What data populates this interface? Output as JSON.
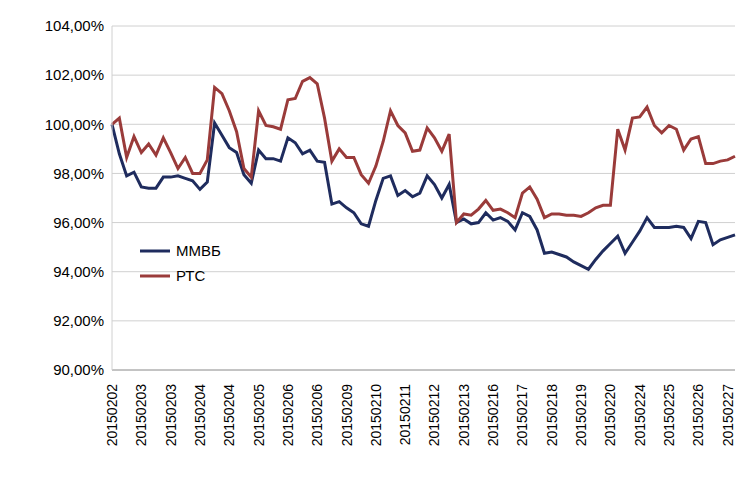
{
  "chart_data": {
    "type": "line",
    "categories": [
      "20150202",
      null,
      null,
      null,
      "20150203",
      null,
      null,
      null,
      "20150203",
      null,
      null,
      null,
      "20150204",
      null,
      null,
      null,
      "20150204",
      null,
      null,
      null,
      "20150205",
      null,
      null,
      null,
      "20150206",
      null,
      null,
      null,
      "20150206",
      null,
      null,
      null,
      "20150209",
      null,
      null,
      null,
      "20150210",
      null,
      null,
      null,
      "20150211",
      null,
      null,
      null,
      "20150212",
      null,
      null,
      null,
      "20150213",
      null,
      null,
      null,
      "20150216",
      null,
      null,
      null,
      "20150217",
      null,
      null,
      null,
      "20150218",
      null,
      null,
      null,
      "20150219",
      null,
      null,
      null,
      "20150220",
      null,
      null,
      null,
      "20150224",
      null,
      null,
      null,
      "20150225",
      null,
      null,
      null,
      "20150226",
      null,
      null,
      null,
      "20150227",
      null
    ],
    "series": [
      {
        "name": "ММВБ",
        "color": "#1f2c5e",
        "values": [
          100.0,
          98.8,
          97.9,
          98.05,
          97.45,
          97.4,
          97.4,
          97.85,
          97.85,
          97.9,
          97.8,
          97.7,
          97.35,
          97.65,
          100.05,
          99.55,
          99.05,
          98.85,
          97.95,
          97.6,
          98.95,
          98.6,
          98.6,
          98.5,
          99.45,
          99.25,
          98.8,
          98.95,
          98.5,
          98.45,
          96.75,
          96.85,
          96.6,
          96.4,
          95.95,
          95.85,
          96.9,
          97.8,
          97.9,
          97.1,
          97.3,
          97.05,
          97.2,
          97.9,
          97.55,
          97.0,
          97.55,
          96.0,
          96.15,
          95.95,
          96.0,
          96.4,
          96.1,
          96.2,
          96.05,
          95.7,
          96.4,
          96.25,
          95.7,
          94.75,
          94.8,
          94.7,
          94.6,
          94.4,
          94.25,
          94.1,
          94.5,
          94.85,
          95.15,
          95.45,
          94.75,
          95.2,
          95.65,
          96.2,
          95.8,
          95.8,
          95.8,
          95.85,
          95.8,
          95.35,
          96.05,
          96.0,
          95.1,
          95.3,
          95.4,
          95.5
        ]
      },
      {
        "name": "РТС",
        "color": "#9a3b3a",
        "values": [
          100.0,
          100.25,
          98.65,
          99.5,
          98.85,
          99.2,
          98.75,
          99.45,
          98.85,
          98.2,
          98.65,
          98.0,
          98.0,
          98.55,
          101.5,
          101.25,
          100.55,
          99.7,
          98.2,
          97.85,
          100.55,
          99.95,
          99.9,
          99.8,
          101.0,
          101.05,
          101.75,
          101.9,
          101.65,
          100.25,
          98.5,
          99.0,
          98.65,
          98.65,
          97.95,
          97.6,
          98.3,
          99.3,
          100.55,
          99.95,
          99.65,
          98.9,
          98.95,
          99.85,
          99.45,
          98.9,
          99.6,
          96.0,
          96.35,
          96.3,
          96.55,
          96.9,
          96.5,
          96.55,
          96.4,
          96.2,
          97.2,
          97.45,
          96.95,
          96.2,
          96.35,
          96.35,
          96.3,
          96.3,
          96.25,
          96.4,
          96.6,
          96.7,
          96.7,
          99.8,
          98.95,
          100.25,
          100.3,
          100.7,
          99.95,
          99.65,
          99.95,
          99.8,
          98.95,
          99.4,
          99.5,
          98.4,
          98.4,
          98.5,
          98.55,
          98.7
        ]
      }
    ],
    "ylim": [
      90,
      104
    ],
    "yticks": [
      {
        "value": 90,
        "label": "90,00%"
      },
      {
        "value": 92,
        "label": "92,00%"
      },
      {
        "value": 94,
        "label": "94,00%"
      },
      {
        "value": 96,
        "label": "96,00%"
      },
      {
        "value": 98,
        "label": "98,00%"
      },
      {
        "value": 100,
        "label": "100,00%"
      },
      {
        "value": 102,
        "label": "102,00%"
      },
      {
        "value": 104,
        "label": "104,00%"
      }
    ],
    "grid": true,
    "legend": "left",
    "marker": "none"
  }
}
